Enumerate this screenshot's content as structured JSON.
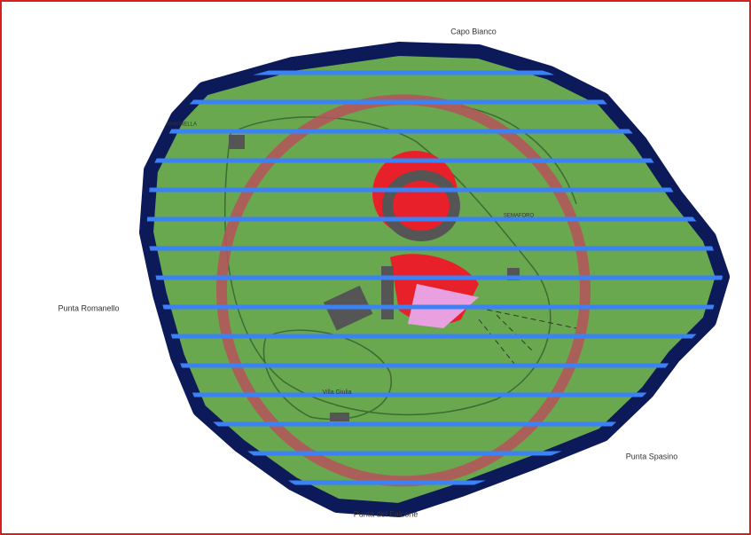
{
  "map": {
    "places": [
      "Capo Bianco",
      "MARINELLA",
      "SEMAFORO",
      "Punta Romanello",
      "Villa Giulia",
      "Punta Spasino",
      "Punta del Falcone"
    ]
  }
}
